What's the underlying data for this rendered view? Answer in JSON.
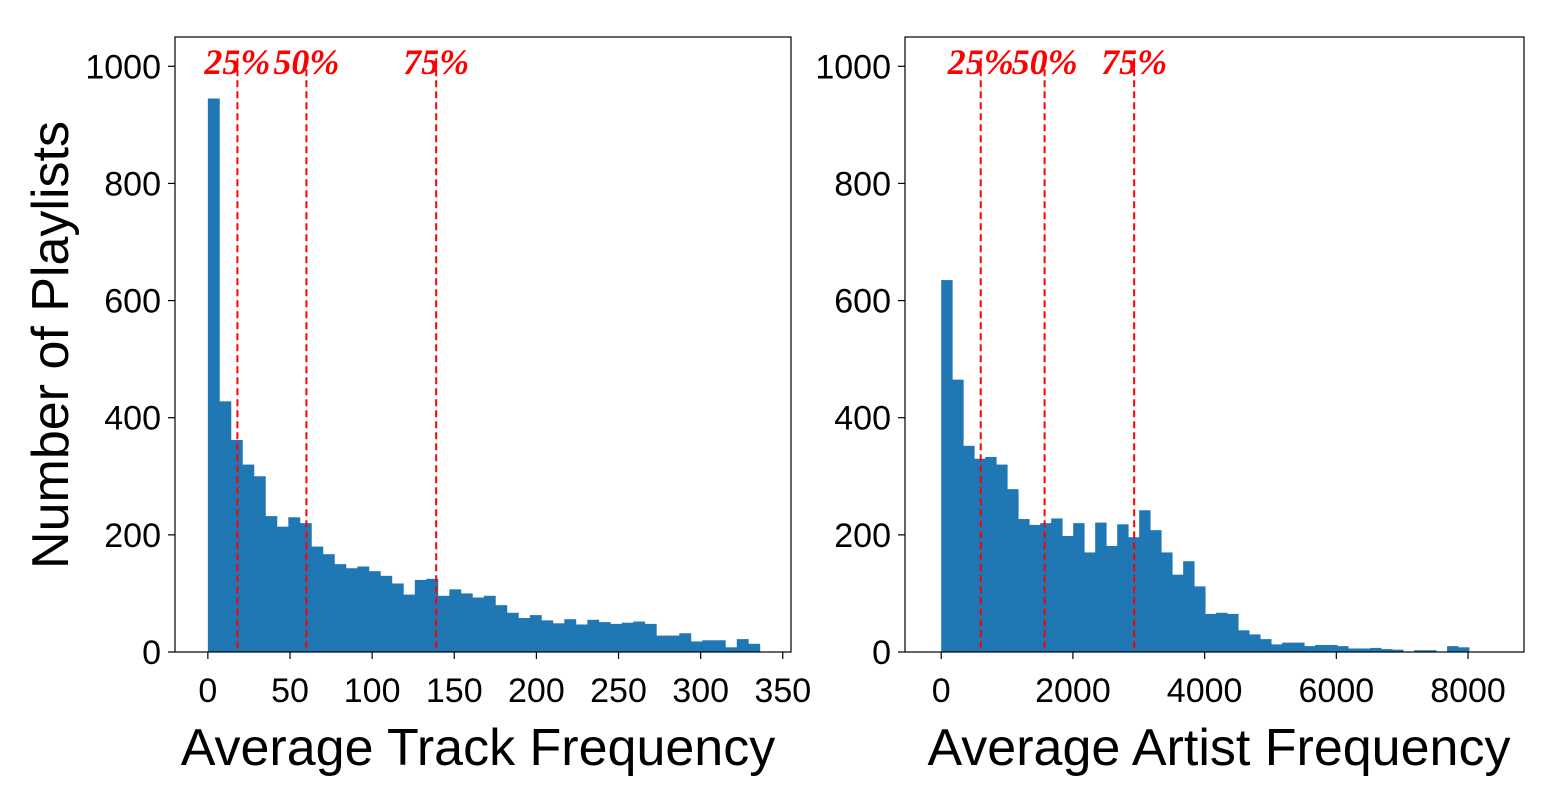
{
  "colors": {
    "bar": "#1f77b4",
    "quantile": "#ff0000",
    "axis": "#000000"
  },
  "chart_data": [
    {
      "type": "bar",
      "subtype": "histogram",
      "xlabel": "Average Track Frequency",
      "ylabel": "Number of Playlists",
      "xlim": [
        -20,
        355
      ],
      "ylim": [
        0,
        1050
      ],
      "xticks": [
        0,
        50,
        100,
        150,
        200,
        250,
        300,
        350
      ],
      "xtick_labels": [
        "0",
        "50",
        "100",
        "150",
        "200",
        "250",
        "300",
        "350"
      ],
      "yticks": [
        0,
        200,
        400,
        600,
        800,
        1000
      ],
      "ytick_labels": [
        "0",
        "200",
        "400",
        "600",
        "800",
        "1000"
      ],
      "bin_start": 0,
      "bin_width": 7,
      "values": [
        945,
        428,
        362,
        320,
        300,
        232,
        214,
        230,
        220,
        180,
        167,
        150,
        143,
        146,
        138,
        130,
        117,
        98,
        123,
        125,
        96,
        107,
        100,
        93,
        96,
        80,
        67,
        58,
        63,
        54,
        49,
        56,
        47,
        55,
        51,
        48,
        50,
        52,
        48,
        28,
        28,
        32,
        18,
        20,
        20,
        8,
        22,
        14
      ],
      "quantiles": [
        {
          "label": "25%",
          "x": 18
        },
        {
          "label": "50%",
          "x": 60
        },
        {
          "label": "75%",
          "x": 139
        }
      ],
      "grid": false,
      "legend": "none"
    },
    {
      "type": "bar",
      "subtype": "histogram",
      "xlabel": "Average Artist Frequency",
      "ylabel": "",
      "xlim": [
        -550,
        8850
      ],
      "ylim": [
        0,
        1050
      ],
      "xticks": [
        0,
        2000,
        4000,
        6000,
        8000
      ],
      "xtick_labels": [
        "0",
        "2000",
        "4000",
        "6000",
        "8000"
      ],
      "yticks": [
        0,
        200,
        400,
        600,
        800,
        1000
      ],
      "ytick_labels": [
        "0",
        "200",
        "400",
        "600",
        "800",
        "1000"
      ],
      "bin_start": 0,
      "bin_width": 167,
      "values": [
        635,
        465,
        352,
        330,
        333,
        320,
        278,
        227,
        217,
        220,
        228,
        198,
        220,
        170,
        221,
        181,
        218,
        196,
        242,
        208,
        170,
        132,
        155,
        112,
        65,
        67,
        65,
        37,
        30,
        22,
        13,
        16,
        16,
        10,
        12,
        12,
        10,
        6,
        6,
        7,
        5,
        4,
        0,
        3,
        3,
        0,
        10,
        8
      ],
      "quantiles": [
        {
          "label": "25%",
          "x": 600
        },
        {
          "label": "50%",
          "x": 1570
        },
        {
          "label": "75%",
          "x": 2930
        }
      ],
      "grid": false,
      "legend": "none"
    }
  ]
}
